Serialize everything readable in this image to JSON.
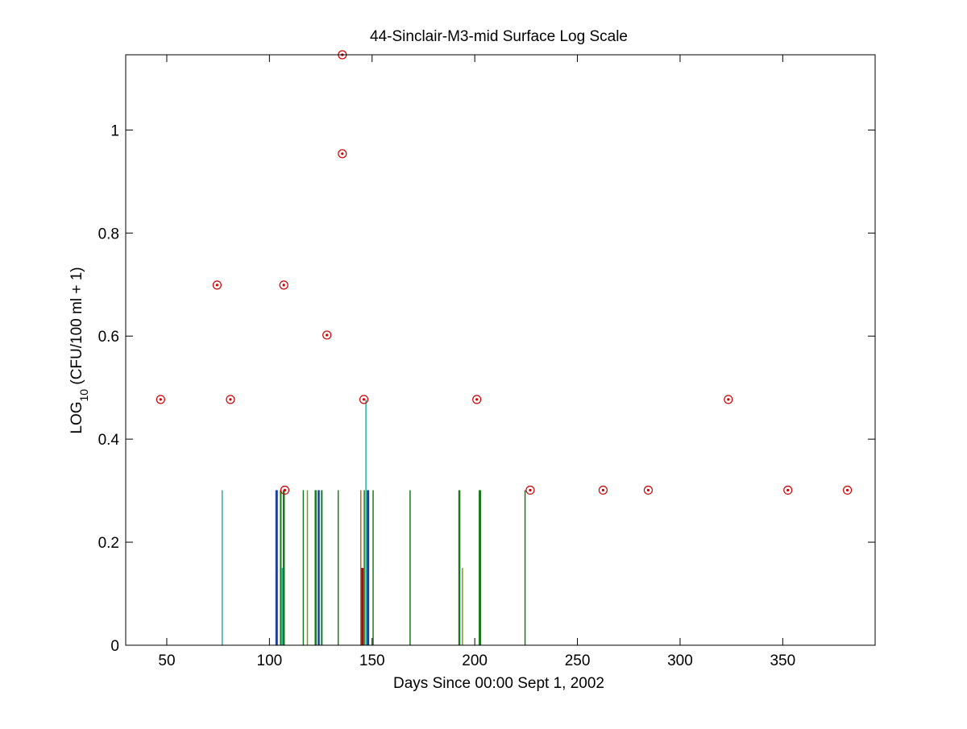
{
  "chart_data": {
    "type": "scatter",
    "title": "44-Sinclair-M3-mid Surface Log Scale",
    "xlabel": "Days Since 00:00 Sept 1, 2002",
    "ylabel": {
      "prefix": "LOG",
      "subscript": "10",
      "suffix": " (CFU/100 ml + 1)"
    },
    "xlim": [
      30,
      395
    ],
    "ylim": [
      0,
      1.146
    ],
    "x_ticks": [
      50,
      100,
      150,
      200,
      250,
      300,
      350
    ],
    "x_tick_labels": [
      "50",
      "100",
      "150",
      "200",
      "250",
      "300",
      "350"
    ],
    "y_ticks": [
      0,
      0.2,
      0.4,
      0.6,
      0.8,
      1
    ],
    "y_tick_labels": [
      "0",
      "0.2",
      "0.4",
      "0.6",
      "0.8",
      "1"
    ],
    "grid": false,
    "series": [
      {
        "marker": "circled-dot",
        "color": "#cc0000",
        "points": [
          {
            "x": 47,
            "y": 0.477
          },
          {
            "x": 74.5,
            "y": 0.699
          },
          {
            "x": 81,
            "y": 0.477
          },
          {
            "x": 107,
            "y": 0.699
          },
          {
            "x": 107.5,
            "y": 0.301
          },
          {
            "x": 128,
            "y": 0.602
          },
          {
            "x": 135.5,
            "y": 0.954
          },
          {
            "x": 135.5,
            "y": 1.146
          },
          {
            "x": 146,
            "y": 0.477
          },
          {
            "x": 201,
            "y": 0.477
          },
          {
            "x": 227,
            "y": 0.301
          },
          {
            "x": 262.5,
            "y": 0.301
          },
          {
            "x": 284.5,
            "y": 0.301
          },
          {
            "x": 323.5,
            "y": 0.477
          },
          {
            "x": 352.5,
            "y": 0.301
          },
          {
            "x": 381.5,
            "y": 0.301
          }
        ]
      }
    ],
    "vertical_bars": [
      {
        "x": 77,
        "height": 0.301,
        "color": "#20b2aa",
        "width": 1.5
      },
      {
        "x": 103.5,
        "height": 0.301,
        "color": "#1a3e9c",
        "width": 3
      },
      {
        "x": 105.5,
        "height": 0.301,
        "color": "#1a7a1a",
        "width": 2
      },
      {
        "x": 106.3,
        "height": 0.15,
        "color": "#20b2aa",
        "width": 1.5
      },
      {
        "x": 107,
        "height": 0.301,
        "color": "#1a7a1a",
        "width": 2.5
      },
      {
        "x": 116.5,
        "height": 0.301,
        "color": "#1a7a1a",
        "width": 1.5
      },
      {
        "x": 118.5,
        "height": 0.301,
        "color": "#6aa61a",
        "width": 1.5
      },
      {
        "x": 122.5,
        "height": 0.301,
        "color": "#1a7a1a",
        "width": 2.5
      },
      {
        "x": 124,
        "height": 0.301,
        "color": "#1a3e9c",
        "width": 2.5
      },
      {
        "x": 125.5,
        "height": 0.301,
        "color": "#1a7a1a",
        "width": 2
      },
      {
        "x": 133.5,
        "height": 0.301,
        "color": "#1a7a1a",
        "width": 1.5
      },
      {
        "x": 144.5,
        "height": 0.301,
        "color": "#cc6600",
        "width": 1.5
      },
      {
        "x": 145.3,
        "height": 0.15,
        "color": "#8b1a1a",
        "width": 3
      },
      {
        "x": 146.2,
        "height": 0.301,
        "color": "#1a7a1a",
        "width": 1.5
      },
      {
        "x": 147,
        "height": 0.477,
        "color": "#20b2aa",
        "width": 1.5
      },
      {
        "x": 148,
        "height": 0.301,
        "color": "#1a3e9c",
        "width": 3
      },
      {
        "x": 150.5,
        "height": 0.301,
        "color": "#1a7a1a",
        "width": 1.5
      },
      {
        "x": 168.5,
        "height": 0.301,
        "color": "#1a7a1a",
        "width": 1.5
      },
      {
        "x": 192.5,
        "height": 0.301,
        "color": "#1a7a1a",
        "width": 2.5
      },
      {
        "x": 194,
        "height": 0.15,
        "color": "#6aa61a",
        "width": 1.5
      },
      {
        "x": 202.5,
        "height": 0.301,
        "color": "#1a7a1a",
        "width": 3
      },
      {
        "x": 224.5,
        "height": 0.301,
        "color": "#1a7a1a",
        "width": 1.5
      }
    ]
  }
}
